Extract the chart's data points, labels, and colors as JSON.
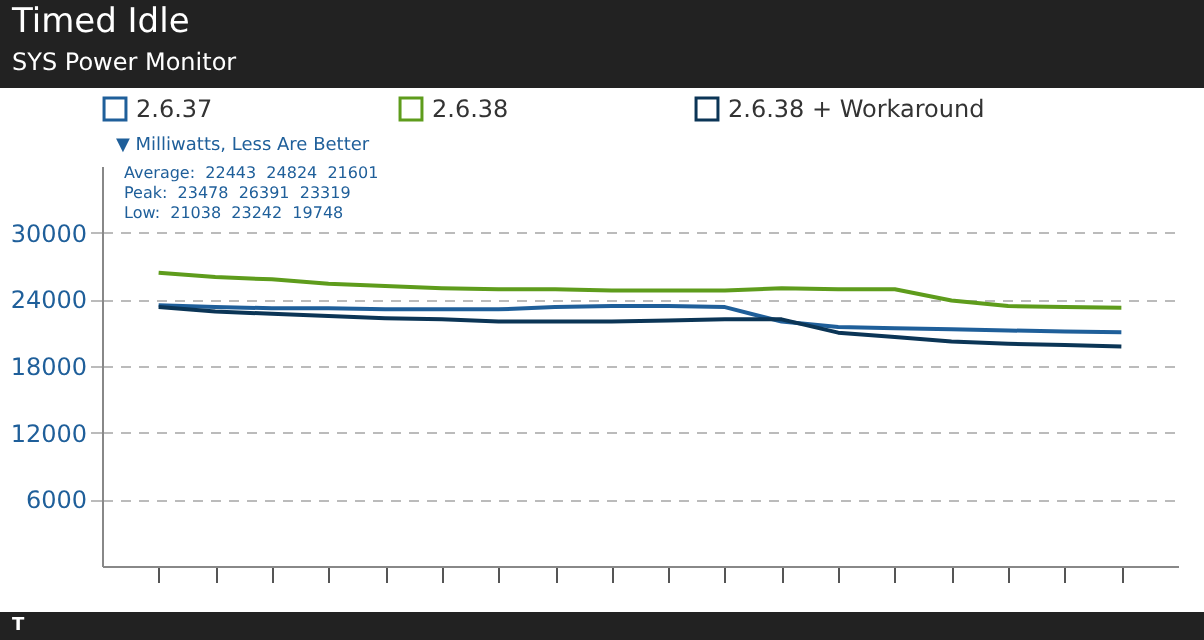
{
  "chart_data": {
    "type": "line",
    "title": "Timed Idle",
    "subtitle": "SYS Power Monitor",
    "ylabel": "▼ Milliwatts, Less Are Better",
    "categories": [
      null,
      null,
      null,
      null,
      null,
      null,
      null,
      null,
      null,
      null,
      null,
      null,
      null,
      null,
      null,
      null,
      null,
      null
    ],
    "series": [
      {
        "name": "2.6.37",
        "color": "#1f5f9a",
        "values": [
          23478,
          23300,
          23200,
          23200,
          23100,
          23100,
          23100,
          23300,
          23400,
          23400,
          23300,
          22000,
          21500,
          21400,
          21300,
          21200,
          21100,
          21038
        ]
      },
      {
        "name": "2.6.38",
        "color": "#5e9c1c",
        "values": [
          26391,
          26000,
          25800,
          25400,
          25200,
          25000,
          24900,
          24900,
          24800,
          24800,
          24800,
          25000,
          24900,
          24900,
          23900,
          23400,
          23300,
          23242
        ]
      },
      {
        "name": "2.6.38 + Workaround",
        "color": "#0b3556",
        "values": [
          23319,
          22900,
          22700,
          22500,
          22300,
          22200,
          22000,
          22000,
          22000,
          22100,
          22200,
          22200,
          21000,
          20600,
          20200,
          20000,
          19900,
          19748
        ]
      }
    ],
    "ylim": [
      0,
      36000
    ],
    "yticks": [
      6000,
      12000,
      18000,
      24000,
      30000
    ],
    "grid": "y",
    "legend": "top",
    "tick_labels": "y",
    "line_style": "solid",
    "annotations": [
      "Average:  22443  24824  21601",
      "Peak:  23478  26391  23319",
      "Low:  21038  23242  19748",
      "T"
    ]
  }
}
